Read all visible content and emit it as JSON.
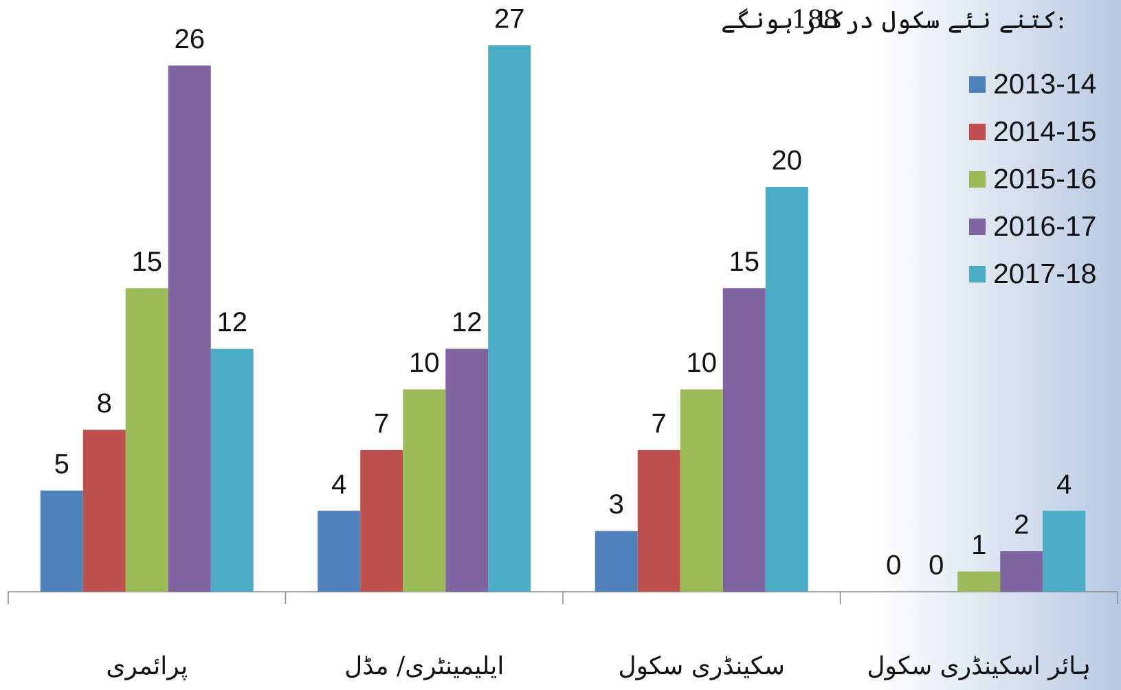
{
  "chart_data": {
    "type": "bar",
    "annotation": {
      "label": "کتنے نئے سکول درکار ہونگے:",
      "value": 188
    },
    "categories": [
      "پرائمری",
      "ایلیمینٹری/ مڈل",
      "سکینڈری سکول",
      "ہائر اسکینڈری سکول"
    ],
    "series": [
      {
        "name": "2013-14",
        "color": "#4f81bd",
        "values": [
          5,
          4,
          3,
          0
        ]
      },
      {
        "name": "2014-15",
        "color": "#c0504d",
        "values": [
          8,
          7,
          7,
          0
        ]
      },
      {
        "name": "2015-16",
        "color": "#9bbb59",
        "values": [
          15,
          10,
          10,
          1
        ]
      },
      {
        "name": "2016-17",
        "color": "#8064a2",
        "values": [
          26,
          12,
          15,
          2
        ]
      },
      {
        "name": "2017-18",
        "color": "#4bacc6",
        "values": [
          12,
          27,
          20,
          4
        ]
      }
    ],
    "ylim": [
      0,
      29
    ],
    "legend": "top-right"
  }
}
